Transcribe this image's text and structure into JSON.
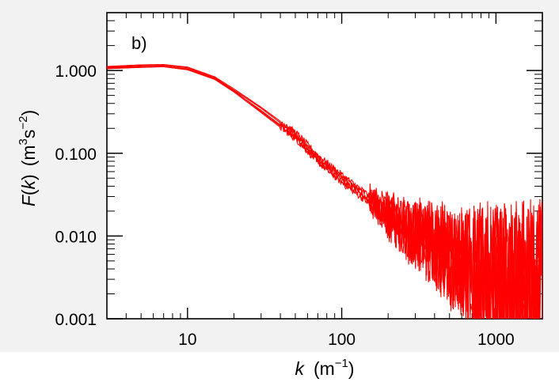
{
  "chart_data": {
    "type": "line",
    "panel_label": "b)",
    "xscale": "log",
    "yscale": "log",
    "xlim": [
      3,
      2000
    ],
    "ylim": [
      0.001,
      5
    ],
    "x_ticks": [
      10,
      100,
      1000
    ],
    "x_tick_labels": [
      "10",
      "100",
      "1000"
    ],
    "y_ticks": [
      0.001,
      0.01,
      0.1,
      1
    ],
    "y_tick_labels": [
      "0.001",
      "0.010",
      "0.100",
      "1.000"
    ],
    "xlabel": {
      "italic": "k",
      "text": "(m",
      "sup": "−1",
      "close": ")"
    },
    "ylabel": {
      "italic": "F",
      "paren_open": "(",
      "italic_k": "k",
      "paren_close": ")",
      "units_prefix": "(m",
      "sup1": "3",
      "mid": "s",
      "sup2": "−2",
      "close": ")"
    },
    "line_color": "#ff0000",
    "grid": false,
    "plot_background": "#f2f2f2",
    "series": [
      {
        "x": [
          3,
          5,
          7,
          10,
          15,
          20,
          30,
          50,
          70,
          100,
          150,
          200,
          300,
          400,
          500,
          700,
          1000,
          1500,
          2000
        ],
        "values": [
          1.08,
          1.12,
          1.13,
          1.05,
          0.8,
          0.56,
          0.33,
          0.16,
          0.085,
          0.048,
          0.027,
          0.017,
          0.01,
          0.0075,
          0.0055,
          0.004,
          0.003,
          0.0025,
          0.002
        ]
      },
      {
        "x": [
          3,
          5,
          7,
          10,
          15,
          20,
          30,
          50,
          70,
          100,
          150,
          200,
          300,
          400,
          500,
          700,
          1000,
          1500,
          2000
        ],
        "values": [
          1.1,
          1.15,
          1.16,
          1.08,
          0.82,
          0.58,
          0.35,
          0.17,
          0.09,
          0.052,
          0.029,
          0.018,
          0.011,
          0.008,
          0.006,
          0.0044,
          0.0033,
          0.0027,
          0.0022
        ]
      },
      {
        "x": [
          3,
          5,
          7,
          10,
          15,
          20,
          30,
          50,
          70,
          100,
          150,
          200,
          300,
          400,
          500,
          700,
          1000,
          1500,
          2000
        ],
        "values": [
          1.05,
          1.09,
          1.11,
          1.02,
          0.78,
          0.55,
          0.31,
          0.15,
          0.078,
          0.044,
          0.025,
          0.016,
          0.0095,
          0.007,
          0.0051,
          0.0037,
          0.0028,
          0.0023,
          0.0019
        ]
      },
      {
        "x": [
          3,
          5,
          7,
          10,
          15,
          20,
          30,
          50,
          70,
          100,
          150,
          200,
          300,
          400,
          500,
          700,
          1000,
          1500,
          2000
        ],
        "values": [
          1.12,
          1.17,
          1.18,
          1.1,
          0.84,
          0.6,
          0.36,
          0.18,
          0.095,
          0.055,
          0.031,
          0.019,
          0.0115,
          0.0085,
          0.0063,
          0.0046,
          0.0035,
          0.0029,
          0.0024
        ]
      },
      {
        "x": [
          3,
          5,
          7,
          10,
          15,
          20,
          30,
          50,
          70,
          100,
          150,
          200,
          300,
          400,
          500,
          700,
          1000,
          1500,
          2000
        ],
        "values": [
          1.07,
          1.1,
          1.12,
          1.04,
          0.79,
          0.57,
          0.32,
          0.155,
          0.082,
          0.046,
          0.026,
          0.0165,
          0.0098,
          0.0072,
          0.0053,
          0.0039,
          0.0029,
          0.0024,
          0.002
        ]
      }
    ]
  }
}
